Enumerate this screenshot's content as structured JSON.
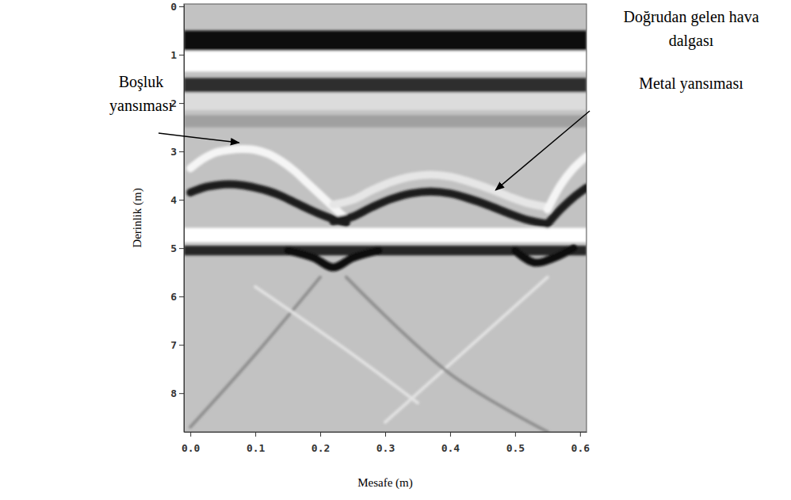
{
  "chart_data": {
    "type": "radargram",
    "x_label": "Mesafe (m)",
    "y_label": "Derinlik (m)",
    "xlim": [
      -0.01,
      0.61
    ],
    "ylim": [
      -0.05,
      8.8
    ],
    "xticks": [
      {
        "value": 0,
        "label": "0.0"
      },
      {
        "value": 0.1,
        "label": "0.1"
      },
      {
        "value": 0.2,
        "label": "0.2"
      },
      {
        "value": 0.3,
        "label": "0.3"
      },
      {
        "value": 0.4,
        "label": "0.4"
      },
      {
        "value": 0.5,
        "label": "0.5"
      },
      {
        "value": 0.6,
        "label": "0.6"
      }
    ],
    "yticks": [
      0,
      1,
      2,
      3,
      4,
      5,
      6,
      7,
      8
    ],
    "grid": false,
    "bands": [
      {
        "top": 0.5,
        "bottom": 0.92,
        "color": "#0a0a0a"
      },
      {
        "top": 0.92,
        "bottom": 1.35,
        "color": "#ffffff"
      },
      {
        "top": 1.48,
        "bottom": 1.78,
        "color": "#2e2e2e"
      },
      {
        "top": 1.78,
        "bottom": 2.15,
        "color": "#dcdcdc"
      },
      {
        "top": 2.25,
        "bottom": 2.5,
        "color": "#a0a0a0"
      },
      {
        "top": 4.58,
        "bottom": 4.88,
        "color": "#ffffff"
      },
      {
        "top": 4.95,
        "bottom": 5.15,
        "color": "#262626"
      }
    ],
    "reflections": [
      {
        "color": "#f5f5f5",
        "x": [
          0,
          0.02,
          0.04,
          0.06,
          0.08,
          0.1,
          0.12,
          0.14,
          0.16,
          0.18,
          0.2,
          0.22,
          0.24
        ],
        "values": [
          3.35,
          3.15,
          3.02,
          2.97,
          2.95,
          2.97,
          3.05,
          3.2,
          3.4,
          3.65,
          3.9,
          4.15,
          4.4
        ]
      },
      {
        "color": "#1a1a1a",
        "x": [
          0,
          0.02,
          0.04,
          0.06,
          0.08,
          0.1,
          0.12,
          0.14,
          0.16,
          0.18,
          0.2,
          0.22,
          0.24
        ],
        "values": [
          3.85,
          3.75,
          3.7,
          3.68,
          3.7,
          3.75,
          3.82,
          3.92,
          4.05,
          4.18,
          4.3,
          4.4,
          4.48
        ]
      },
      {
        "color": "#e6e6e6",
        "x": [
          0.22,
          0.25,
          0.28,
          0.31,
          0.34,
          0.37,
          0.4,
          0.43,
          0.46,
          0.49,
          0.52,
          0.55
        ],
        "values": [
          4.1,
          4.0,
          3.8,
          3.63,
          3.52,
          3.48,
          3.52,
          3.63,
          3.77,
          3.93,
          4.07,
          4.15
        ]
      },
      {
        "color": "#1a1a1a",
        "x": [
          0.22,
          0.25,
          0.28,
          0.31,
          0.34,
          0.37,
          0.4,
          0.43,
          0.46,
          0.49,
          0.52,
          0.55
        ],
        "values": [
          4.45,
          4.35,
          4.15,
          3.98,
          3.87,
          3.83,
          3.87,
          3.98,
          4.12,
          4.28,
          4.42,
          4.5
        ]
      },
      {
        "color": "#f5f5f5",
        "x": [
          0.55,
          0.57,
          0.59,
          0.61
        ],
        "values": [
          4.2,
          3.7,
          3.35,
          3.1
        ]
      },
      {
        "color": "#1a1a1a",
        "x": [
          0.55,
          0.57,
          0.59,
          0.61
        ],
        "values": [
          4.5,
          4.2,
          3.95,
          3.75
        ]
      },
      {
        "color": "#111111",
        "x": [
          0.15,
          0.19,
          0.22,
          0.25,
          0.29
        ],
        "values": [
          5.05,
          5.2,
          5.4,
          5.2,
          5.05
        ]
      },
      {
        "color": "#111111",
        "x": [
          0.5,
          0.53,
          0.56,
          0.59
        ],
        "values": [
          5.05,
          5.3,
          5.2,
          5.0
        ]
      },
      {
        "color": "#8f8f8f",
        "line_style": "thin",
        "x": [
          0.2,
          0.1,
          0.0
        ],
        "values": [
          5.6,
          7.2,
          8.7
        ]
      },
      {
        "color": "#e2e2e2",
        "line_style": "thin",
        "x": [
          0.55,
          0.4,
          0.3
        ],
        "values": [
          5.6,
          7.4,
          8.6
        ]
      },
      {
        "color": "#e2e2e2",
        "line_style": "thin",
        "x": [
          0.1,
          0.25,
          0.35
        ],
        "values": [
          5.8,
          7.2,
          8.2
        ]
      },
      {
        "color": "#8f8f8f",
        "line_style": "thin",
        "x": [
          0.24,
          0.4,
          0.55
        ],
        "values": [
          5.6,
          7.6,
          8.8
        ]
      }
    ],
    "annotations": [
      {
        "text": "Doğrudan gelen hava dalgası"
      },
      {
        "text": "Boşluk yansıması",
        "x": 0.075,
        "y": 2.82
      },
      {
        "text": "Metal yansıması",
        "x": 0.47,
        "y": 3.8
      }
    ]
  }
}
